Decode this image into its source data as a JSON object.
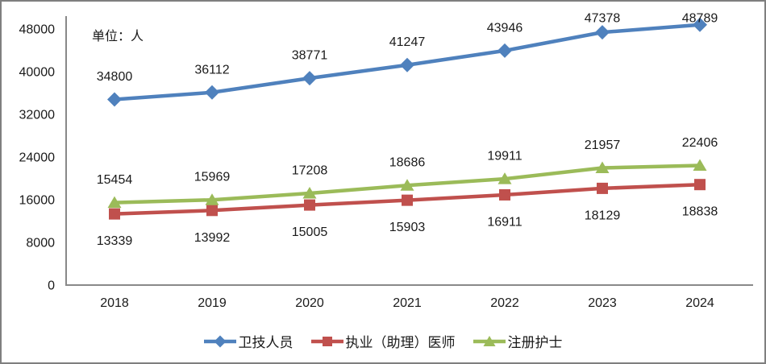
{
  "chart_data": {
    "type": "line",
    "title": "",
    "unit_label": "单位：人",
    "categories": [
      "2018",
      "2019",
      "2020",
      "2021",
      "2022",
      "2023",
      "2024"
    ],
    "series": [
      {
        "name": "卫技人员",
        "color": "#4F81BD",
        "marker": "diamond",
        "label_position": "above",
        "values": [
          34800,
          36112,
          38771,
          41247,
          43946,
          47378,
          48789
        ]
      },
      {
        "name": "执业（助理）医师",
        "color": "#C0504D",
        "marker": "square",
        "label_position": "below",
        "values": [
          13339,
          13992,
          15005,
          15903,
          16911,
          18129,
          18838
        ]
      },
      {
        "name": "注册护士",
        "color": "#9BBB59",
        "marker": "triangle",
        "label_position": "above",
        "values": [
          15454,
          15969,
          17208,
          18686,
          19911,
          21957,
          22406
        ]
      }
    ],
    "y_axis": {
      "min": 0,
      "max": 48000,
      "step": 8000,
      "ticks": [
        "0",
        "8000",
        "16000",
        "24000",
        "32000",
        "40000",
        "48000"
      ]
    },
    "xlabel": "",
    "ylabel": "",
    "grid": false,
    "legend_position": "bottom",
    "colors": {
      "axis": "#898989",
      "text": "#1A1A1A",
      "frame_border": "#7F7F7F"
    }
  }
}
